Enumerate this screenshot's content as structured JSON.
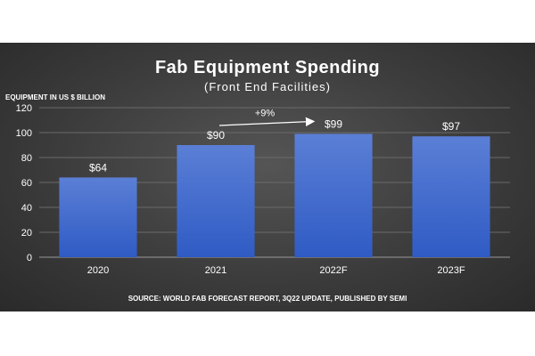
{
  "chart_data": {
    "type": "bar",
    "title": "Fab Equipment Spending",
    "subtitle": "(Front End Facilities)",
    "ylabel": "EQUIPMENT IN US $ BILLION",
    "xlabel": "",
    "categories": [
      "2020",
      "2021",
      "2022F",
      "2023F"
    ],
    "values": [
      64,
      90,
      99,
      97
    ],
    "data_labels": [
      "$64",
      "$90",
      "$99",
      "$97"
    ],
    "ylim": [
      0,
      120
    ],
    "yticks": [
      0,
      20,
      40,
      60,
      80,
      100,
      120
    ],
    "grid": true,
    "legend": "none",
    "annotation": {
      "text": "+9%",
      "from": "2021",
      "to": "2022F"
    },
    "source": "SOURCE: WORLD FAB FORECAST REPORT, 3Q22 UPDATE, PUBLISHED BY SEMI",
    "colors": {
      "bar_top": "#5b7fd6",
      "bar_bottom": "#2f5bc4",
      "background": "#3c3c3c"
    }
  }
}
